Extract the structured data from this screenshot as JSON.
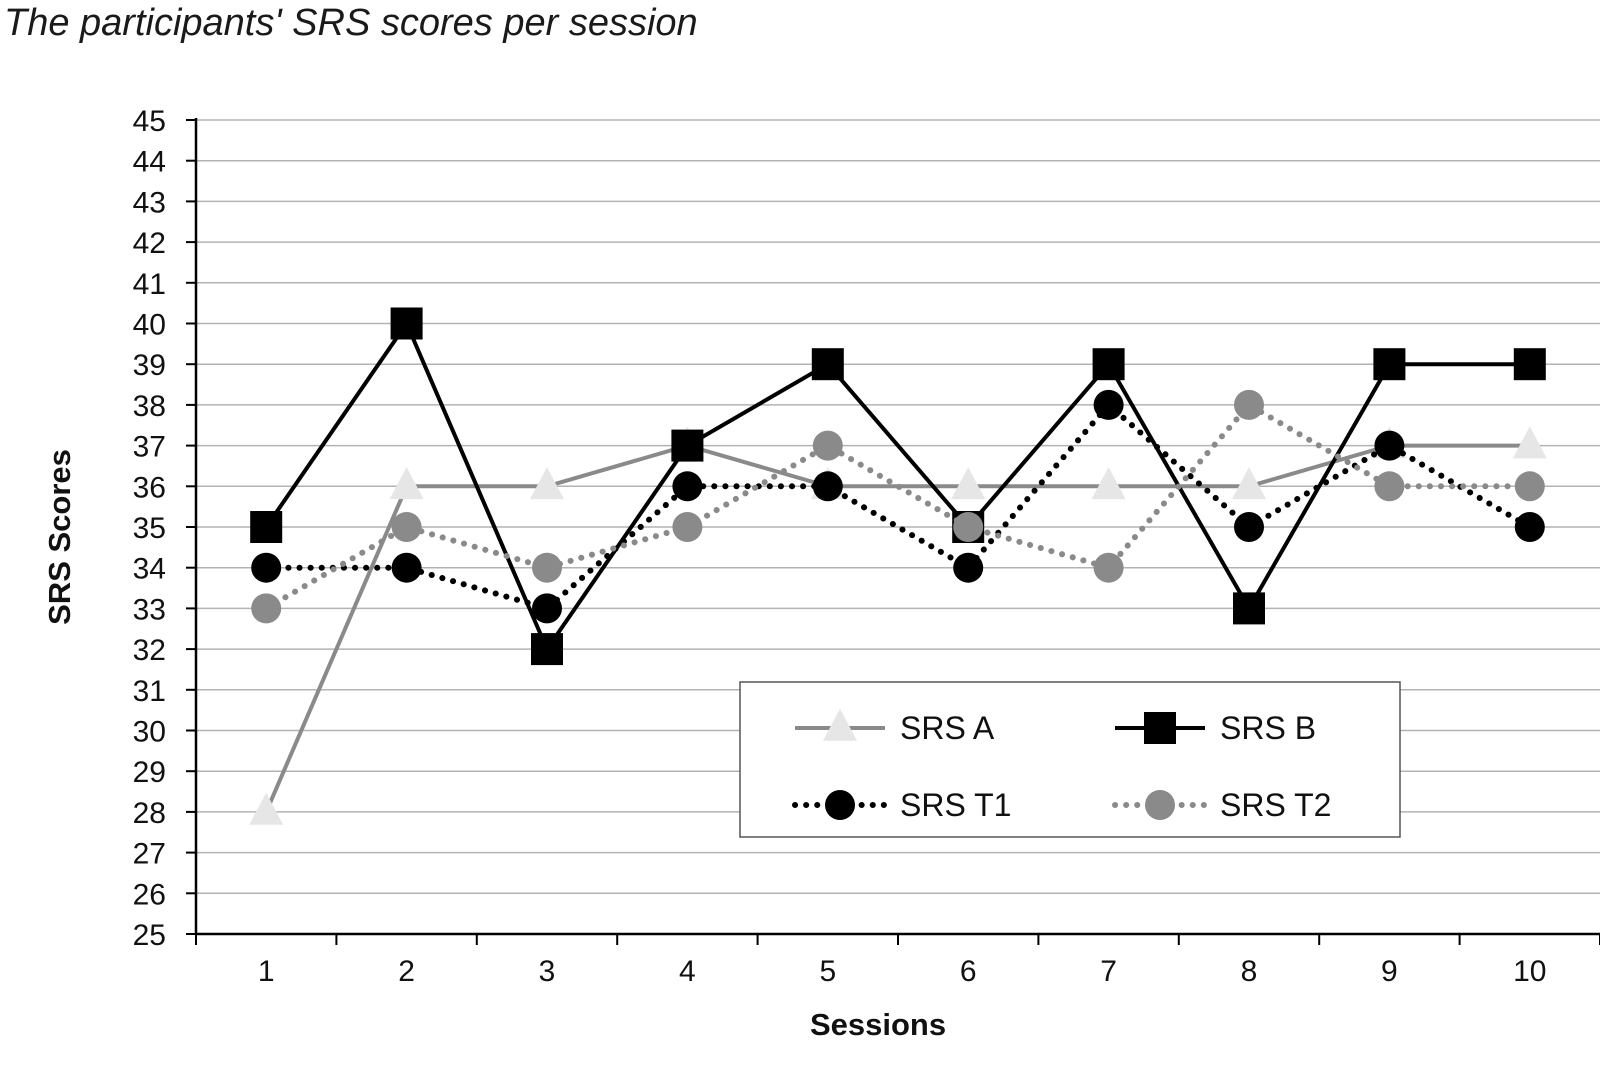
{
  "chart_data": {
    "type": "line",
    "title": "The participants' SRS scores per session",
    "xlabel": "Sessions",
    "ylabel": "SRS Scores",
    "x": [
      1,
      2,
      3,
      4,
      5,
      6,
      7,
      8,
      9,
      10
    ],
    "ylim": [
      25,
      45
    ],
    "yticks": [
      25,
      26,
      27,
      28,
      29,
      30,
      31,
      32,
      33,
      34,
      35,
      36,
      37,
      38,
      39,
      40,
      41,
      42,
      43,
      44,
      45
    ],
    "grid": true,
    "legend_position": "lower-right",
    "series": [
      {
        "name": "SRS A",
        "values": [
          28,
          36,
          36,
          37,
          36,
          36,
          36,
          36,
          37,
          37
        ],
        "line": "solid",
        "marker": "triangle",
        "color": "#8a8a8a",
        "marker_color": "#e6e6e6"
      },
      {
        "name": "SRS B",
        "values": [
          35,
          40,
          32,
          37,
          39,
          35,
          39,
          33,
          39,
          39
        ],
        "line": "solid",
        "marker": "square",
        "color": "#000000",
        "marker_color": "#000000"
      },
      {
        "name": "SRS T1",
        "values": [
          34,
          34,
          33,
          36,
          36,
          34,
          38,
          35,
          37,
          35
        ],
        "line": "dotted",
        "marker": "circle",
        "color": "#000000",
        "marker_color": "#000000"
      },
      {
        "name": "SRS T2",
        "values": [
          33,
          35,
          34,
          35,
          37,
          35,
          34,
          38,
          36,
          36
        ],
        "line": "dotted",
        "marker": "circle",
        "color": "#8a8a8a",
        "marker_color": "#8a8a8a"
      }
    ]
  }
}
